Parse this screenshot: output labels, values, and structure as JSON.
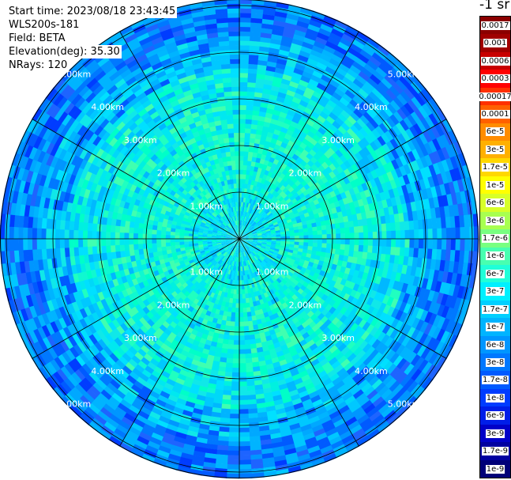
{
  "info": {
    "start_time": "Start time: 2023/08/18 23:43:45",
    "instrument": "WLS200s-181",
    "field": "Field: BETA",
    "elevation": "Elevation(deg): 35.30",
    "nrays": "NRays: 120"
  },
  "unit_label": "-1 sr",
  "range_rings": [
    "1.00km",
    "2.00km",
    "3.00km",
    "4.00km",
    "5.00km"
  ],
  "colorbar": [
    {
      "label": "0.0017",
      "color": "#8b0000"
    },
    {
      "label": "0.001",
      "color": "#a00000"
    },
    {
      "label": "0.0006",
      "color": "#c80000"
    },
    {
      "label": "0.0003",
      "color": "#ff0000"
    },
    {
      "label": "0.00017",
      "color": "#ff3000"
    },
    {
      "label": "0.0001",
      "color": "#ff6000"
    },
    {
      "label": "6e-5",
      "color": "#ff8c00"
    },
    {
      "label": "3e-5",
      "color": "#ffb000"
    },
    {
      "label": "1.7e-5",
      "color": "#ffd700"
    },
    {
      "label": "1e-5",
      "color": "#ffff00"
    },
    {
      "label": "6e-6",
      "color": "#d8ff28"
    },
    {
      "label": "3e-6",
      "color": "#a8ff50"
    },
    {
      "label": "1.7e-6",
      "color": "#78ff80"
    },
    {
      "label": "1e-6",
      "color": "#48ffb0"
    },
    {
      "label": "6e-7",
      "color": "#20ffd8"
    },
    {
      "label": "3e-7",
      "color": "#00f0ff"
    },
    {
      "label": "1.7e-7",
      "color": "#00d0ff"
    },
    {
      "label": "1e-7",
      "color": "#00b4ff"
    },
    {
      "label": "6e-8",
      "color": "#0096ff"
    },
    {
      "label": "3e-8",
      "color": "#0078ff"
    },
    {
      "label": "1.7e-8",
      "color": "#005aff"
    },
    {
      "label": "1e-8",
      "color": "#003cff"
    },
    {
      "label": "6e-9",
      "color": "#001ee8"
    },
    {
      "label": "3e-9",
      "color": "#0000c8"
    },
    {
      "label": "1.7e-9",
      "color": "#0000a0"
    },
    {
      "label": "1e-9",
      "color": "#000078"
    }
  ]
}
